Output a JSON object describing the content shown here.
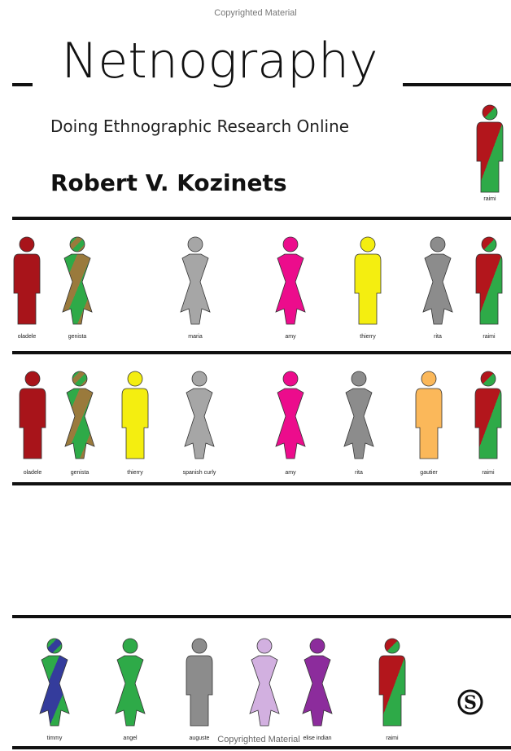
{
  "watermark_top": "Copyrighted Material",
  "title": "Netnography",
  "subtitle": "Doing Ethnographic Research Online",
  "author": "Robert V. Kozinets",
  "corner_figure": {
    "label": "raimi",
    "shape": "m",
    "colors": [
      "#b3161c",
      "#2eaa48"
    ]
  },
  "rows": [
    {
      "figures": [
        {
          "label": "oladele",
          "shape": "m",
          "colors": [
            "#a8141a"
          ]
        },
        {
          "label": "genista",
          "shape": "f",
          "colors": [
            "#2eaa48",
            "#9a7a3c",
            "#2eaa48",
            "#9a7a3c"
          ]
        },
        {
          "label": "maria",
          "shape": "f",
          "colors": [
            "#a6a6a6"
          ]
        },
        {
          "label": "amy",
          "shape": "f",
          "colors": [
            "#ec0c8c"
          ]
        },
        {
          "label": "thierry",
          "shape": "m",
          "colors": [
            "#f4ee10"
          ]
        },
        {
          "label": "rita",
          "shape": "f",
          "colors": [
            "#8c8c8c"
          ]
        },
        {
          "label": "raimi",
          "shape": "m",
          "colors": [
            "#b3161c",
            "#2eaa48"
          ]
        }
      ]
    },
    {
      "figures": [
        {
          "label": "oladele",
          "shape": "m",
          "colors": [
            "#a8141a"
          ]
        },
        {
          "label": "genista",
          "shape": "f",
          "colors": [
            "#2eaa48",
            "#9a7a3c",
            "#2eaa48",
            "#9a7a3c"
          ]
        },
        {
          "label": "thierry",
          "shape": "m",
          "colors": [
            "#f4ee10"
          ]
        },
        {
          "label": "spanish curly",
          "shape": "f",
          "colors": [
            "#a6a6a6"
          ]
        },
        {
          "label": "amy",
          "shape": "f",
          "colors": [
            "#ec0c8c"
          ]
        },
        {
          "label": "rita",
          "shape": "f",
          "colors": [
            "#8c8c8c"
          ]
        },
        {
          "label": "gautier",
          "shape": "m",
          "colors": [
            "#fbb85a"
          ]
        },
        {
          "label": "raimi",
          "shape": "m",
          "colors": [
            "#b3161c",
            "#2eaa48"
          ]
        }
      ]
    },
    {
      "figures": [
        {
          "label": "timmy",
          "shape": "f",
          "colors": [
            "#2eaa48",
            "#343c9c",
            "#2eaa48"
          ]
        },
        {
          "label": "angel",
          "shape": "f",
          "colors": [
            "#2eaa48"
          ]
        },
        {
          "label": "auguste",
          "shape": "m",
          "colors": [
            "#8c8c8c"
          ]
        },
        {
          "label": null,
          "shape": "f",
          "colors": [
            "#d2b0e0"
          ]
        },
        {
          "label": "elise indian",
          "shape": "f",
          "colors": [
            "#8c2c9c"
          ]
        },
        {
          "label": "raimi",
          "shape": "m",
          "colors": [
            "#b3161c",
            "#2eaa48"
          ]
        }
      ]
    }
  ],
  "publisher_logo": "S",
  "watermark_bottom": "Copyrighted Material"
}
